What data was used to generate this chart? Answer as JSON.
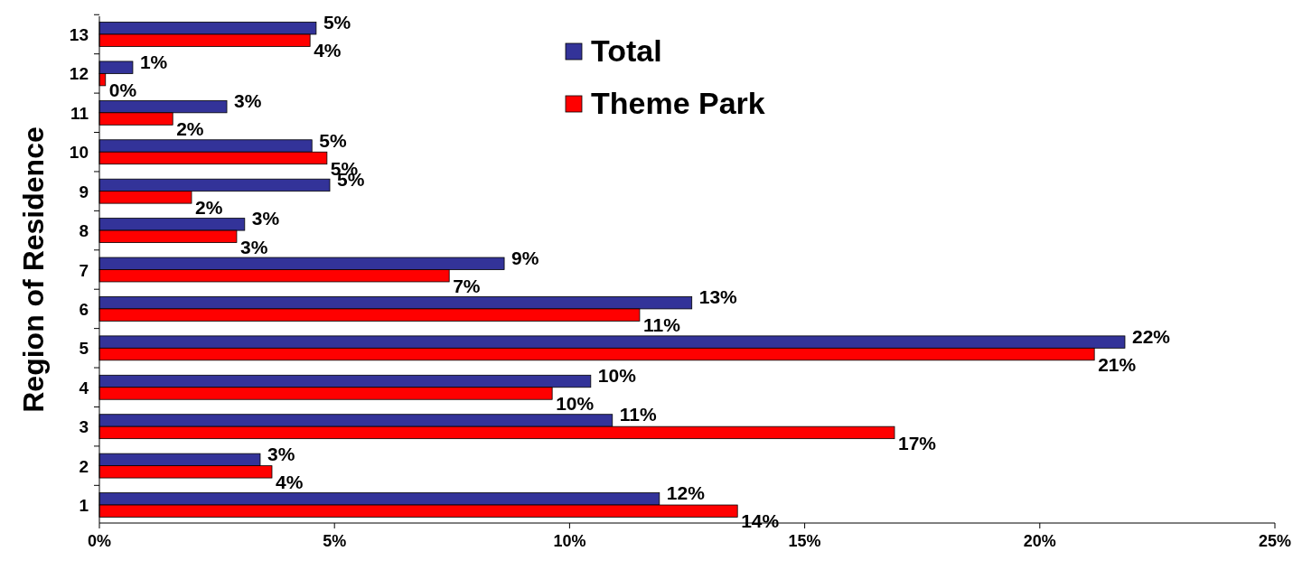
{
  "chart_data": {
    "type": "bar",
    "orientation": "horizontal",
    "ylabel": "Region of Residence",
    "categories": [
      "13",
      "12",
      "11",
      "10",
      "9",
      "8",
      "7",
      "6",
      "5",
      "4",
      "3",
      "2",
      "1"
    ],
    "series": [
      {
        "name": "Total",
        "color": "#333399",
        "values": [
          4.61,
          0.71,
          2.71,
          4.52,
          4.9,
          3.09,
          8.61,
          12.6,
          21.81,
          10.45,
          10.91,
          3.42,
          11.91
        ],
        "value_labels": [
          "5%",
          "1%",
          "3%",
          "5%",
          "5%",
          "3%",
          "9%",
          "13%",
          "22%",
          "10%",
          "11%",
          "3%",
          "12%"
        ]
      },
      {
        "name": "Theme Park",
        "color": "#ff0000",
        "values": [
          4.48,
          0.13,
          1.56,
          4.84,
          1.96,
          2.92,
          7.44,
          11.49,
          21.16,
          9.63,
          16.91,
          3.67,
          13.57
        ],
        "value_labels": [
          "4%",
          "0%",
          "2%",
          "5%",
          "2%",
          "3%",
          "7%",
          "11%",
          "21%",
          "10%",
          "17%",
          "4%",
          "14%"
        ]
      }
    ],
    "xlim": [
      0,
      25
    ],
    "xticks": [
      {
        "value": 0,
        "label": "0%"
      },
      {
        "value": 5,
        "label": "5%"
      },
      {
        "value": 10,
        "label": "10%"
      },
      {
        "value": 15,
        "label": "15%"
      },
      {
        "value": 20,
        "label": "20%"
      },
      {
        "value": 25,
        "label": "25%"
      }
    ],
    "legend": "top",
    "grid": false
  }
}
